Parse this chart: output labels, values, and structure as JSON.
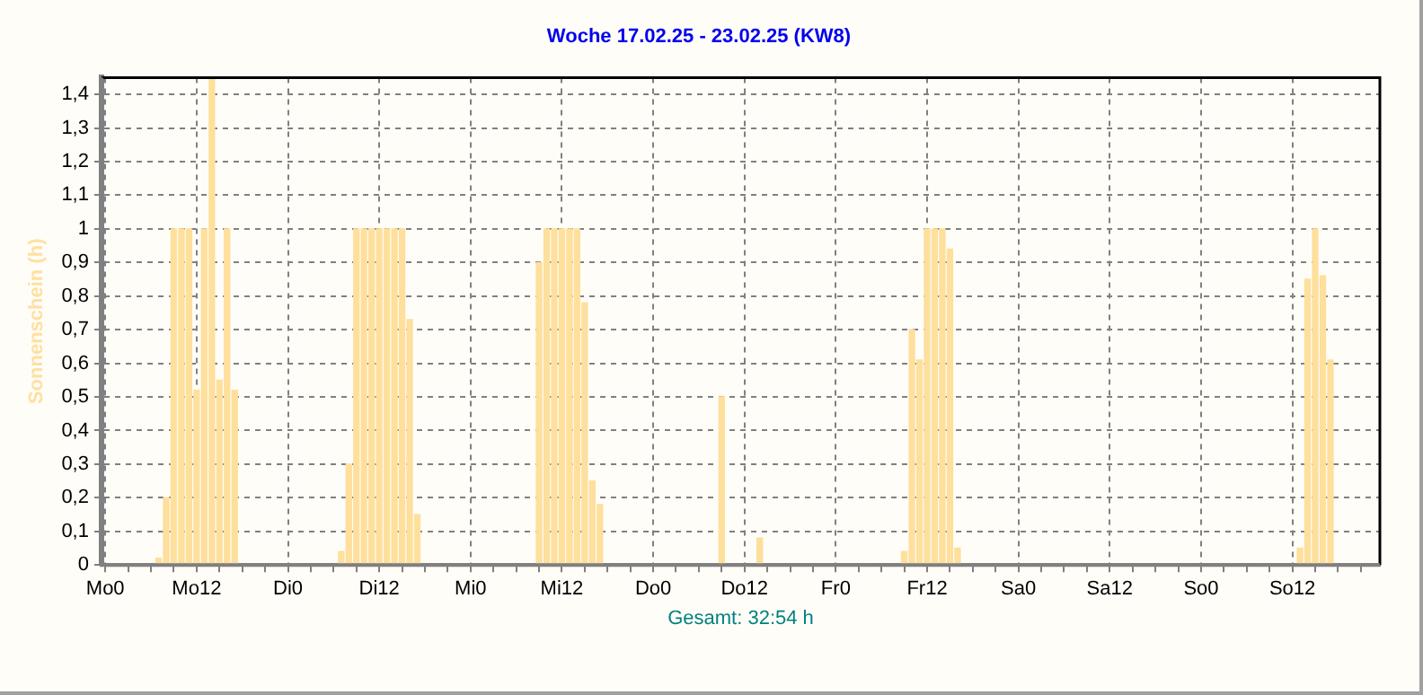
{
  "chart_data": {
    "type": "bar",
    "title": "Woche 17.02.25 - 23.02.25 (KW8)",
    "ylabel": "Sonnenschein (h)",
    "xlabel": "Gesamt: 32:54 h",
    "categories": [
      "Mo0",
      null,
      null,
      null,
      null,
      null,
      null,
      null,
      null,
      null,
      null,
      null,
      "Mo12",
      null,
      null,
      null,
      null,
      null,
      null,
      null,
      null,
      null,
      null,
      null,
      "Di0",
      null,
      null,
      null,
      null,
      null,
      null,
      null,
      null,
      null,
      null,
      null,
      "Di12",
      null,
      null,
      null,
      null,
      null,
      null,
      null,
      null,
      null,
      null,
      null,
      "Mi0",
      null,
      null,
      null,
      null,
      null,
      null,
      null,
      null,
      null,
      null,
      null,
      "Mi12",
      null,
      null,
      null,
      null,
      null,
      null,
      null,
      null,
      null,
      null,
      null,
      "Do0",
      null,
      null,
      null,
      null,
      null,
      null,
      null,
      null,
      null,
      null,
      null,
      "Do12",
      null,
      null,
      null,
      null,
      null,
      null,
      null,
      null,
      null,
      null,
      null,
      "Fr0",
      null,
      null,
      null,
      null,
      null,
      null,
      null,
      null,
      null,
      null,
      null,
      "Fr12",
      null,
      null,
      null,
      null,
      null,
      null,
      null,
      null,
      null,
      null,
      null,
      "Sa0",
      null,
      null,
      null,
      null,
      null,
      null,
      null,
      null,
      null,
      null,
      null,
      "Sa12",
      null,
      null,
      null,
      null,
      null,
      null,
      null,
      null,
      null,
      null,
      null,
      "So0",
      null,
      null,
      null,
      null,
      null,
      null,
      null,
      null,
      null,
      null,
      null,
      "So12",
      null,
      null,
      null,
      null,
      null,
      null,
      null,
      null,
      null,
      null,
      null
    ],
    "values": [
      0,
      0,
      0,
      0,
      0,
      0,
      0,
      0.02,
      0.2,
      1,
      1,
      1,
      0.52,
      1,
      1.45,
      0.55,
      1,
      0.52,
      0,
      0,
      0,
      0,
      0,
      0,
      0,
      0,
      0,
      0,
      0,
      0,
      0,
      0.04,
      0.3,
      1,
      1,
      1,
      1,
      1,
      1,
      1,
      0.73,
      0.15,
      0,
      0,
      0,
      0,
      0,
      0,
      0,
      0,
      0,
      0,
      0,
      0,
      0,
      0,
      0,
      0.9,
      1,
      1,
      1,
      1,
      1,
      0.78,
      0.25,
      0.18,
      0,
      0,
      0,
      0,
      0,
      0,
      0,
      0,
      0,
      0,
      0,
      0,
      0,
      0,
      0,
      0.5,
      0,
      0,
      0,
      0,
      0.08,
      0,
      0,
      0,
      0,
      0,
      0,
      0,
      0,
      0,
      0,
      0,
      0,
      0,
      0,
      0,
      0,
      0,
      0,
      0.04,
      0.7,
      0.61,
      1,
      1,
      1,
      0.94,
      0.05,
      0,
      0,
      0,
      0,
      0,
      0,
      0,
      0,
      0,
      0,
      0,
      0,
      0,
      0,
      0,
      0,
      0,
      0,
      0,
      0,
      0,
      0,
      0,
      0,
      0,
      0,
      0,
      0,
      0,
      0,
      0,
      0,
      0,
      0,
      0,
      0,
      0,
      0,
      0,
      0,
      0,
      0,
      0,
      0,
      0.05,
      0.85,
      1,
      0.86,
      0.61,
      0,
      0,
      0,
      0,
      0,
      0
    ],
    "color": "#fedf9c",
    "ylim": [
      0,
      1.45
    ],
    "yticks": [
      0,
      {
        "value": 0.1,
        "label": "0,1"
      },
      {
        "value": 0.2,
        "label": "0,2"
      },
      {
        "value": 0.3,
        "label": "0,3"
      },
      {
        "value": 0.4,
        "label": "0,4"
      },
      {
        "value": 0.5,
        "label": "0,5"
      },
      {
        "value": 0.6,
        "label": "0,6"
      },
      {
        "value": 0.7,
        "label": "0,7"
      },
      {
        "value": 0.8,
        "label": "0,8"
      },
      {
        "value": 0.9,
        "label": "0,9"
      },
      1,
      {
        "value": 1.1,
        "label": "1,1"
      },
      {
        "value": 1.2,
        "label": "1,2"
      },
      {
        "value": 1.3,
        "label": "1,3"
      },
      {
        "value": 1.4,
        "label": "1,4"
      }
    ],
    "grid": true
  }
}
